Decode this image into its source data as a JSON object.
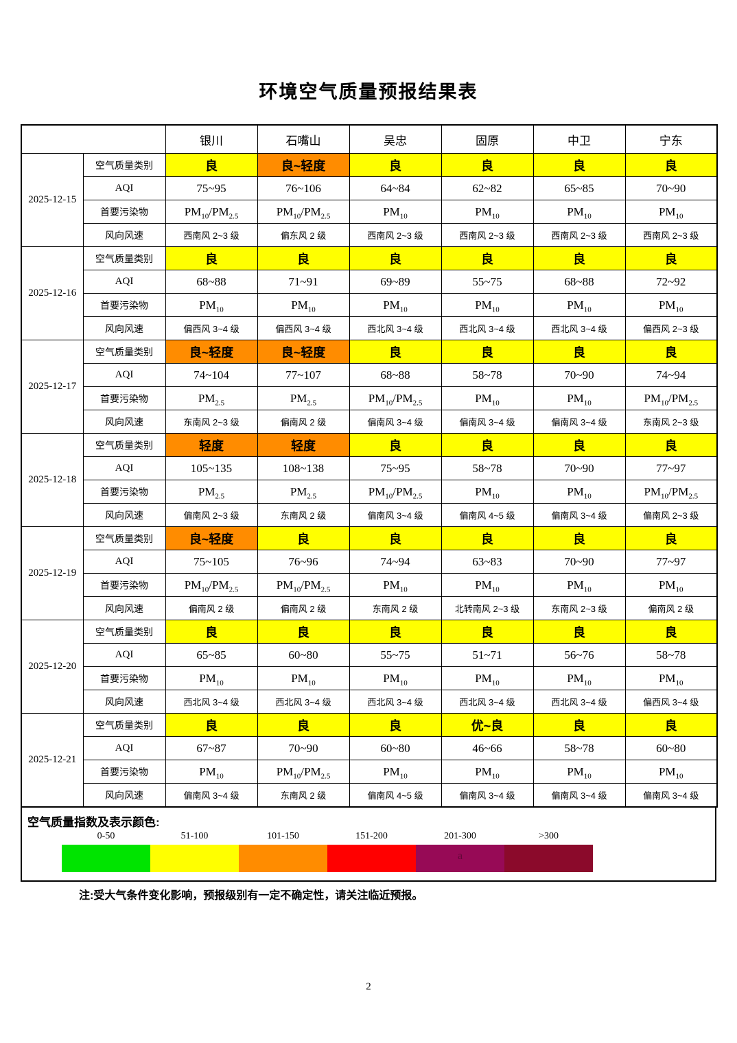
{
  "title": "环境空气质量预报结果表",
  "page_number": "2",
  "note": "注:受大气条件变化影响，预报级别有一定不确定性，请关注临近预报。",
  "cities": [
    "银川",
    "石嘴山",
    "吴忠",
    "固原",
    "中卫",
    "宁东"
  ],
  "row_labels": {
    "category": "空气质量类别",
    "aqi": "AQI",
    "pollutant": "首要污染物",
    "wind": "风向风速"
  },
  "category_colors": {
    "yellow": "#FFFF00",
    "orange": "#FF8C00"
  },
  "days": [
    {
      "date": "2025-12-15",
      "category": [
        {
          "text": "良",
          "color": "yellow"
        },
        {
          "text": "良~轻度",
          "color": "orange"
        },
        {
          "text": "良",
          "color": "yellow"
        },
        {
          "text": "良",
          "color": "yellow"
        },
        {
          "text": "良",
          "color": "yellow"
        },
        {
          "text": "良",
          "color": "yellow"
        }
      ],
      "aqi": [
        "75~95",
        "76~106",
        "64~84",
        "62~82",
        "65~85",
        "70~90"
      ],
      "pollutant": [
        "PM10/PM2.5",
        "PM10/PM2.5",
        "PM10",
        "PM10",
        "PM10",
        "PM10"
      ],
      "wind": [
        "西南风 2~3 级",
        "偏东风 2 级",
        "西南风 2~3 级",
        "西南风 2~3 级",
        "西南风 2~3 级",
        "西南风 2~3 级"
      ]
    },
    {
      "date": "2025-12-16",
      "category": [
        {
          "text": "良",
          "color": "yellow"
        },
        {
          "text": "良",
          "color": "yellow"
        },
        {
          "text": "良",
          "color": "yellow"
        },
        {
          "text": "良",
          "color": "yellow"
        },
        {
          "text": "良",
          "color": "yellow"
        },
        {
          "text": "良",
          "color": "yellow"
        }
      ],
      "aqi": [
        "68~88",
        "71~91",
        "69~89",
        "55~75",
        "68~88",
        "72~92"
      ],
      "pollutant": [
        "PM10",
        "PM10",
        "PM10",
        "PM10",
        "PM10",
        "PM10"
      ],
      "wind": [
        "偏西风 3~4 级",
        "偏西风 3~4 级",
        "西北风 3~4 级",
        "西北风 3~4 级",
        "西北风 3~4 级",
        "偏西风 2~3 级"
      ]
    },
    {
      "date": "2025-12-17",
      "category": [
        {
          "text": "良~轻度",
          "color": "orange"
        },
        {
          "text": "良~轻度",
          "color": "orange"
        },
        {
          "text": "良",
          "color": "yellow"
        },
        {
          "text": "良",
          "color": "yellow"
        },
        {
          "text": "良",
          "color": "yellow"
        },
        {
          "text": "良",
          "color": "yellow"
        }
      ],
      "aqi": [
        "74~104",
        "77~107",
        "68~88",
        "58~78",
        "70~90",
        "74~94"
      ],
      "pollutant": [
        "PM2.5",
        "PM2.5",
        "PM10/PM2.5",
        "PM10",
        "PM10",
        "PM10/PM2.5"
      ],
      "wind": [
        "东南风 2~3 级",
        "偏南风 2 级",
        "偏南风 3~4 级",
        "偏南风 3~4 级",
        "偏南风 3~4 级",
        "东南风 2~3 级"
      ]
    },
    {
      "date": "2025-12-18",
      "category": [
        {
          "text": "轻度",
          "color": "orange"
        },
        {
          "text": "轻度",
          "color": "orange"
        },
        {
          "text": "良",
          "color": "yellow"
        },
        {
          "text": "良",
          "color": "yellow"
        },
        {
          "text": "良",
          "color": "yellow"
        },
        {
          "text": "良",
          "color": "yellow"
        }
      ],
      "aqi": [
        "105~135",
        "108~138",
        "75~95",
        "58~78",
        "70~90",
        "77~97"
      ],
      "pollutant": [
        "PM2.5",
        "PM2.5",
        "PM10/PM2.5",
        "PM10",
        "PM10",
        "PM10/PM2.5"
      ],
      "wind": [
        "偏南风 2~3 级",
        "东南风 2 级",
        "偏南风 3~4 级",
        "偏南风 4~5 级",
        "偏南风 3~4 级",
        "偏南风 2~3 级"
      ]
    },
    {
      "date": "2025-12-19",
      "category": [
        {
          "text": "良~轻度",
          "color": "orange"
        },
        {
          "text": "良",
          "color": "yellow"
        },
        {
          "text": "良",
          "color": "yellow"
        },
        {
          "text": "良",
          "color": "yellow"
        },
        {
          "text": "良",
          "color": "yellow"
        },
        {
          "text": "良",
          "color": "yellow"
        }
      ],
      "aqi": [
        "75~105",
        "76~96",
        "74~94",
        "63~83",
        "70~90",
        "77~97"
      ],
      "pollutant": [
        "PM10/PM2.5",
        "PM10/PM2.5",
        "PM10",
        "PM10",
        "PM10",
        "PM10"
      ],
      "wind": [
        "偏南风 2 级",
        "偏南风 2 级",
        "东南风 2 级",
        "北转南风 2~3 级",
        "东南风 2~3 级",
        "偏南风 2 级"
      ]
    },
    {
      "date": "2025-12-20",
      "category": [
        {
          "text": "良",
          "color": "yellow"
        },
        {
          "text": "良",
          "color": "yellow"
        },
        {
          "text": "良",
          "color": "yellow"
        },
        {
          "text": "良",
          "color": "yellow"
        },
        {
          "text": "良",
          "color": "yellow"
        },
        {
          "text": "良",
          "color": "yellow"
        }
      ],
      "aqi": [
        "65~85",
        "60~80",
        "55~75",
        "51~71",
        "56~76",
        "58~78"
      ],
      "pollutant": [
        "PM10",
        "PM10",
        "PM10",
        "PM10",
        "PM10",
        "PM10"
      ],
      "wind": [
        "西北风 3~4 级",
        "西北风 3~4 级",
        "西北风 3~4 级",
        "西北风 3~4 级",
        "西北风 3~4 级",
        "偏西风 3~4 级"
      ]
    },
    {
      "date": "2025-12-21",
      "category": [
        {
          "text": "良",
          "color": "yellow"
        },
        {
          "text": "良",
          "color": "yellow"
        },
        {
          "text": "良",
          "color": "yellow"
        },
        {
          "text": "优~良",
          "color": "yellow"
        },
        {
          "text": "良",
          "color": "yellow"
        },
        {
          "text": "良",
          "color": "yellow"
        }
      ],
      "aqi": [
        "67~87",
        "70~90",
        "60~80",
        "46~66",
        "58~78",
        "60~80"
      ],
      "pollutant": [
        "PM10",
        "PM10/PM2.5",
        "PM10",
        "PM10",
        "PM10",
        "PM10"
      ],
      "wind": [
        "偏南风 3~4 级",
        "东南风 2 级",
        "偏南风 4~5 级",
        "偏南风 3~4 级",
        "偏南风 3~4 级",
        "偏南风 3~4 级"
      ]
    }
  ],
  "legend": {
    "title": "空气质量指数及表示颜色:",
    "ranges": [
      {
        "label": "0-50",
        "color": "#00E400",
        "overlay": ""
      },
      {
        "label": "51-100",
        "color": "#FFFF00",
        "overlay": ""
      },
      {
        "label": "101-150",
        "color": "#FF8C00",
        "overlay": ""
      },
      {
        "label": "151-200",
        "color": "#FF0000",
        "overlay": ""
      },
      {
        "label": "201-300",
        "color": "#970A56",
        "overlay": "a"
      },
      {
        "label": ">300",
        "color": "#8B0A2B",
        "overlay": ""
      }
    ]
  }
}
